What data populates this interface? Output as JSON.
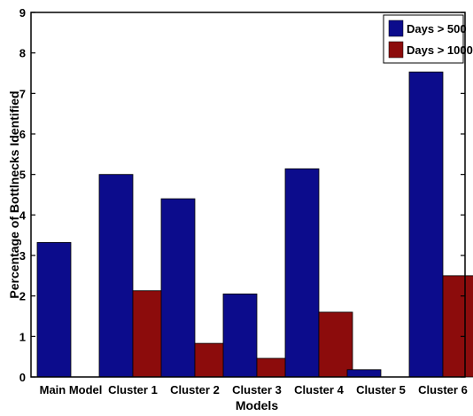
{
  "chart_data": {
    "type": "bar",
    "title": "",
    "xlabel": "Models",
    "ylabel": "Percentage of Bottlnecks Identified",
    "ylim": [
      0,
      9
    ],
    "yticks": [
      0,
      1,
      2,
      3,
      4,
      5,
      6,
      7,
      8,
      9
    ],
    "categories": [
      "Main Model",
      "Cluster 1",
      "Cluster 2",
      "Cluster 3",
      "Cluster 4",
      "Cluster 5",
      "Cluster 6"
    ],
    "series": [
      {
        "name": "Days > 500",
        "color": "#0c0c8c",
        "values": [
          3.32,
          5.0,
          4.4,
          2.05,
          5.14,
          0.18,
          7.53
        ]
      },
      {
        "name": "Days > 1000",
        "color": "#8c0c0c",
        "values": [
          0,
          2.13,
          0.83,
          0.46,
          1.6,
          0,
          2.5
        ]
      }
    ],
    "legend_position": "top-right",
    "grid": false
  }
}
